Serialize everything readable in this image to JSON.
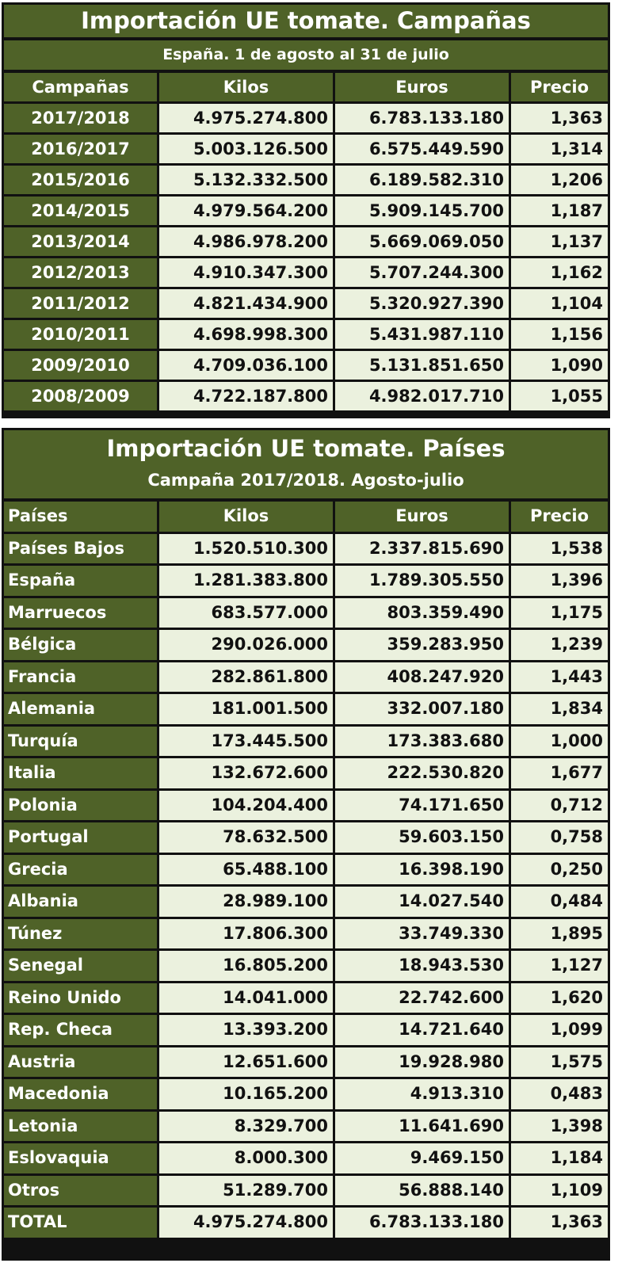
{
  "campaigns_table": {
    "title": "Importación UE tomate. Campañas",
    "subtitle": "España. 1 de agosto al 31 de julio",
    "headers": [
      "Campañas",
      "Kilos",
      "Euros",
      "Precio"
    ],
    "rows": [
      [
        "2017/2018",
        "4.975.274.800",
        "6.783.133.180",
        "1,363"
      ],
      [
        "2016/2017",
        "5.003.126.500",
        "6.575.449.590",
        "1,314"
      ],
      [
        "2015/2016",
        "5.132.332.500",
        "6.189.582.310",
        "1,206"
      ],
      [
        "2014/2015",
        "4.979.564.200",
        "5.909.145.700",
        "1,187"
      ],
      [
        "2013/2014",
        "4.986.978.200",
        "5.669.069.050",
        "1,137"
      ],
      [
        "2012/2013",
        "4.910.347.300",
        "5.707.244.300",
        "1,162"
      ],
      [
        "2011/2012",
        "4.821.434.900",
        "5.320.927.390",
        "1,104"
      ],
      [
        "2010/2011",
        "4.698.998.300",
        "5.431.987.110",
        "1,156"
      ],
      [
        "2009/2010",
        "4.709.036.100",
        "5.131.851.650",
        "1,090"
      ],
      [
        "2008/2009",
        "4.722.187.800",
        "4.982.017.710",
        "1,055"
      ]
    ]
  },
  "countries_table": {
    "title": "Importación UE tomate. Países",
    "subtitle": "Campaña 2017/2018. Agosto-julio",
    "headers": [
      "Países",
      "Kilos",
      "Euros",
      "Precio"
    ],
    "rows": [
      [
        "Países Bajos",
        "1.520.510.300",
        "2.337.815.690",
        "1,538"
      ],
      [
        "España",
        "1.281.383.800",
        "1.789.305.550",
        "1,396"
      ],
      [
        "Marruecos",
        "683.577.000",
        "803.359.490",
        "1,175"
      ],
      [
        "Bélgica",
        "290.026.000",
        "359.283.950",
        "1,239"
      ],
      [
        "Francia",
        "282.861.800",
        "408.247.920",
        "1,443"
      ],
      [
        "Alemania",
        "181.001.500",
        "332.007.180",
        "1,834"
      ],
      [
        "Turquía",
        "173.445.500",
        "173.383.680",
        "1,000"
      ],
      [
        "Italia",
        "132.672.600",
        "222.530.820",
        "1,677"
      ],
      [
        "Polonia",
        "104.204.400",
        "74.171.650",
        "0,712"
      ],
      [
        "Portugal",
        "78.632.500",
        "59.603.150",
        "0,758"
      ],
      [
        "Grecia",
        "65.488.100",
        "16.398.190",
        "0,250"
      ],
      [
        "Albania",
        "28.989.100",
        "14.027.540",
        "0,484"
      ],
      [
        "Túnez",
        "17.806.300",
        "33.749.330",
        "1,895"
      ],
      [
        "Senegal",
        "16.805.200",
        "18.943.530",
        "1,127"
      ],
      [
        "Reino Unido",
        "14.041.000",
        "22.742.600",
        "1,620"
      ],
      [
        "Rep. Checa",
        "13.393.200",
        "14.721.640",
        "1,099"
      ],
      [
        "Austria",
        "12.651.600",
        "19.928.980",
        "1,575"
      ],
      [
        "Macedonia",
        "10.165.200",
        "4.913.310",
        "0,483"
      ],
      [
        "Letonia",
        "8.329.700",
        "11.641.690",
        "1,398"
      ],
      [
        "Eslovaquia",
        "8.000.300",
        "9.469.150",
        "1,184"
      ],
      [
        "Otros",
        "51.289.700",
        "56.888.140",
        "1,109"
      ],
      [
        "TOTAL",
        "4.975.274.800",
        "6.783.133.180",
        "1,363"
      ]
    ]
  },
  "colors": {
    "header_green": "#4f6228",
    "cell_bg": "#ebf1de",
    "border": "#111111"
  }
}
